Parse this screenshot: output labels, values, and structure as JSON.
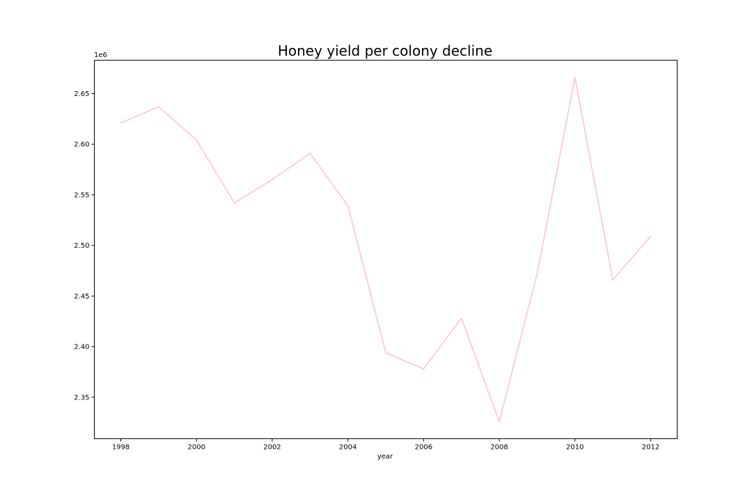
{
  "chart_data": {
    "type": "line",
    "title": "Honey yield per colony decline",
    "xlabel": "year",
    "ylabel": "",
    "y_offset_label": "1e6",
    "x": [
      1998,
      1999,
      2000,
      2001,
      2002,
      2003,
      2004,
      2005,
      2006,
      2007,
      2008,
      2009,
      2010,
      2011,
      2012
    ],
    "series": [
      {
        "values": [
          2621000,
          2637000,
          2604000,
          2542000,
          2565000,
          2591000,
          2539000,
          2394000,
          2378000,
          2428000,
          2326000,
          2472000,
          2666000,
          2466000,
          2509000
        ],
        "color": "#ffc0cb"
      }
    ],
    "xlim": [
      1997.3,
      2012.7
    ],
    "ylim": [
      2309000,
      2683000
    ],
    "x_ticks": [
      1998,
      2000,
      2002,
      2004,
      2006,
      2008,
      2010,
      2012
    ],
    "x_tick_labels": [
      "1998",
      "2000",
      "2002",
      "2004",
      "2006",
      "2008",
      "2010",
      "2012"
    ],
    "y_ticks": [
      2350000,
      2400000,
      2450000,
      2500000,
      2550000,
      2600000,
      2650000
    ],
    "y_tick_labels": [
      "2.35",
      "2.40",
      "2.45",
      "2.50",
      "2.55",
      "2.60",
      "2.65"
    ],
    "grid": false,
    "legend": null
  }
}
